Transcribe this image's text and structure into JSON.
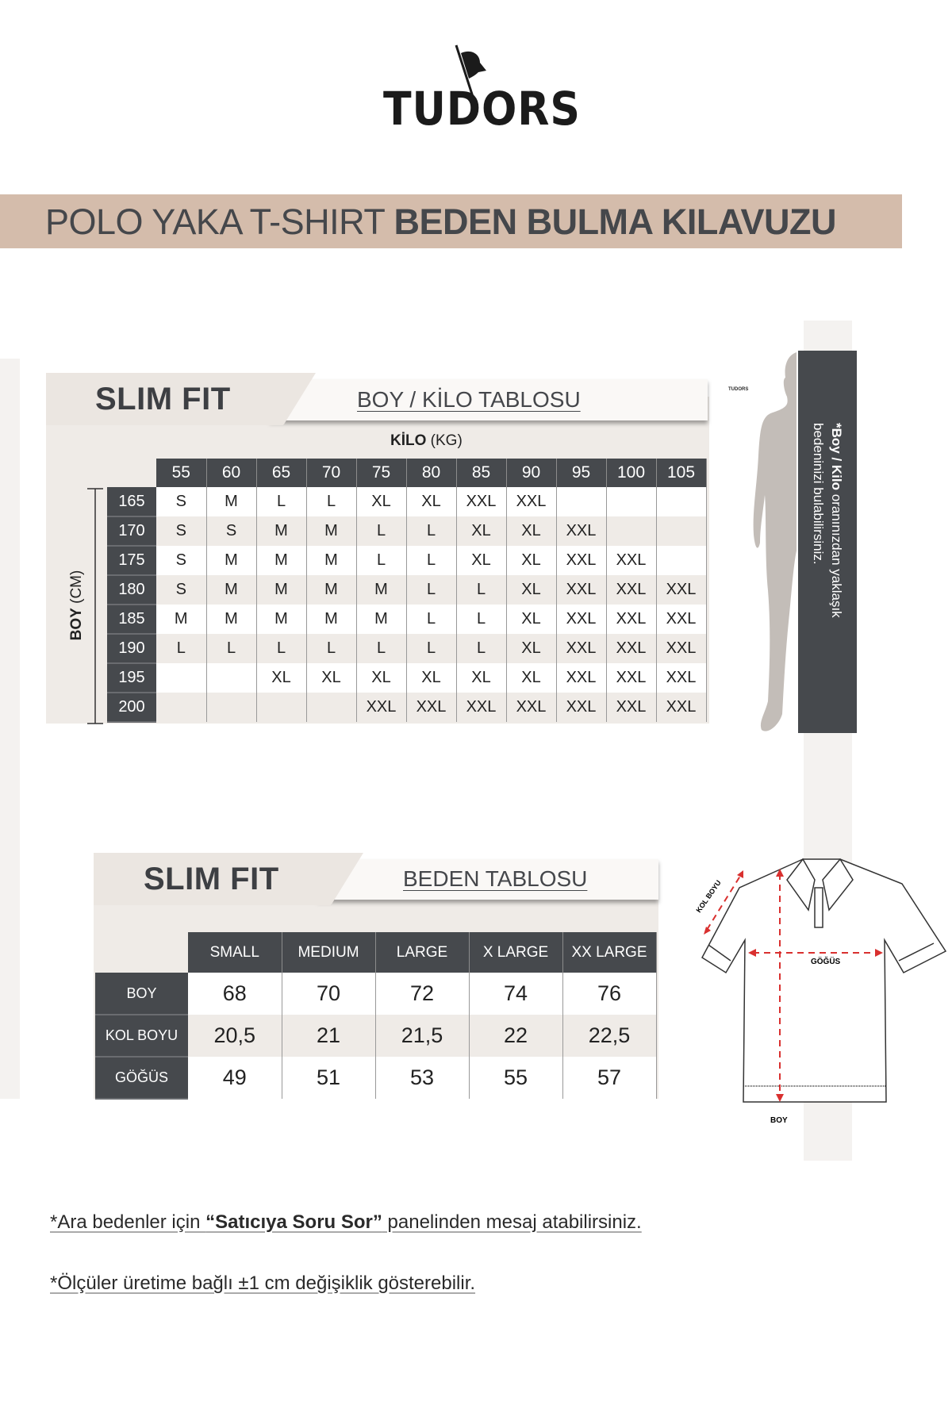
{
  "brand": {
    "logo_text": "TUDORS",
    "small_logo_text": "TUDORS"
  },
  "banner": {
    "light": "POLO YAKA T-SHIRT",
    "bold": "BEDEN BULMA KILAVUZU",
    "color": "#d4bcab"
  },
  "boy_kilo": {
    "fit_title": "SLIM FIT",
    "subtitle": "BOY / KİLO TABLOSU",
    "kilo_label_bold": "KİLO",
    "kilo_label_unit": "(KG)",
    "boy_label_bold": "BOY",
    "boy_label_unit": "(CM)",
    "weights": [
      "55",
      "60",
      "65",
      "70",
      "75",
      "80",
      "85",
      "90",
      "95",
      "100",
      "105"
    ],
    "rows": [
      {
        "height": "165",
        "sizes": [
          "S",
          "M",
          "L",
          "L",
          "XL",
          "XL",
          "XXL",
          "XXL",
          "",
          "",
          ""
        ]
      },
      {
        "height": "170",
        "sizes": [
          "S",
          "S",
          "M",
          "M",
          "L",
          "L",
          "XL",
          "XL",
          "XXL",
          "",
          ""
        ]
      },
      {
        "height": "175",
        "sizes": [
          "S",
          "M",
          "M",
          "M",
          "L",
          "L",
          "XL",
          "XL",
          "XXL",
          "XXL",
          ""
        ]
      },
      {
        "height": "180",
        "sizes": [
          "S",
          "M",
          "M",
          "M",
          "M",
          "L",
          "L",
          "XL",
          "XXL",
          "XXL",
          "XXL"
        ]
      },
      {
        "height": "185",
        "sizes": [
          "M",
          "M",
          "M",
          "M",
          "M",
          "L",
          "L",
          "XL",
          "XXL",
          "XXL",
          "XXL"
        ]
      },
      {
        "height": "190",
        "sizes": [
          "L",
          "L",
          "L",
          "L",
          "L",
          "L",
          "L",
          "XL",
          "XXL",
          "XXL",
          "XXL"
        ]
      },
      {
        "height": "195",
        "sizes": [
          "",
          "",
          "XL",
          "XL",
          "XL",
          "XL",
          "XL",
          "XL",
          "XXL",
          "XXL",
          "XXL"
        ]
      },
      {
        "height": "200",
        "sizes": [
          "",
          "",
          "",
          "",
          "XXL",
          "XXL",
          "XXL",
          "XXL",
          "XXL",
          "XXL",
          "XXL"
        ]
      }
    ],
    "side_note_bold": "*Boy / Kilo",
    "side_note_rest": " oranınızdan yaklaşık",
    "side_note_line2": "bedeninizi bulabilirsiniz."
  },
  "beden": {
    "fit_title": "SLIM FIT",
    "subtitle": "BEDEN TABLOSU",
    "sizes": [
      "SMALL",
      "MEDIUM",
      "LARGE",
      "X LARGE",
      "XX LARGE"
    ],
    "rows": [
      {
        "label": "BOY",
        "values": [
          "68",
          "70",
          "72",
          "74",
          "76"
        ]
      },
      {
        "label": "KOL BOYU",
        "values": [
          "20,5",
          "21",
          "21,5",
          "22",
          "22,5"
        ]
      },
      {
        "label": "GÖĞÜS",
        "values": [
          "49",
          "51",
          "53",
          "55",
          "57"
        ]
      }
    ],
    "diagram": {
      "kol_boyu": "KOL BOYU",
      "gogus": "GÖĞÜS",
      "boy": "BOY",
      "measure_color": "#d9302f"
    }
  },
  "notes": {
    "note1_pre": "*Ara bedenler için ",
    "note1_bold": "“Satıcıya Soru Sor”",
    "note1_post": " panelinden mesaj atabilirsiniz.",
    "note2": "*Ölçüler üretime bağlı ±1 cm değişiklik gösterebilir."
  },
  "colors": {
    "dark": "#46494d",
    "panel": "#efebe7",
    "strip": "#f4f2f0"
  }
}
